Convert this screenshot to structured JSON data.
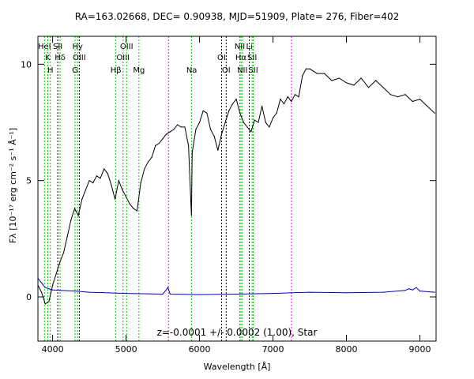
{
  "chart_data": {
    "type": "line",
    "title": "RA=163.02668, DEC= 0.90938, MJD=51909, Plate= 276, Fiber=402",
    "annotation": "z=-0.0001 +/- 0.0002 (1.00), Star",
    "xlabel": "Wavelength [Å]",
    "ylabel": "Fλ [10⁻¹⁷ erg cm⁻² s⁻¹ Å⁻¹]",
    "xlim": [
      3800,
      9220
    ],
    "ylim": [
      -1.9,
      11.2
    ],
    "grid": false,
    "x_ticks": [
      4000,
      5000,
      6000,
      7000,
      8000,
      9000
    ],
    "y_ticks": [
      0,
      5,
      10
    ],
    "series": [
      {
        "color": "#000000",
        "x": [
          3800,
          3850,
          3900,
          3950,
          4000,
          4050,
          4100,
          4150,
          4200,
          4250,
          4300,
          4350,
          4400,
          4450,
          4500,
          4550,
          4600,
          4650,
          4700,
          4750,
          4800,
          4850,
          4900,
          4950,
          5000,
          5050,
          5100,
          5150,
          5200,
          5250,
          5300,
          5350,
          5400,
          5450,
          5500,
          5550,
          5600,
          5650,
          5700,
          5750,
          5800,
          5850,
          5890,
          5900,
          5950,
          6000,
          6050,
          6100,
          6150,
          6200,
          6250,
          6300,
          6350,
          6400,
          6450,
          6500,
          6550,
          6600,
          6650,
          6700,
          6750,
          6800,
          6850,
          6900,
          6950,
          7000,
          7050,
          7100,
          7150,
          7200,
          7250,
          7300,
          7350,
          7400,
          7450,
          7500,
          7600,
          7700,
          7800,
          7900,
          8000,
          8100,
          8200,
          8300,
          8400,
          8500,
          8600,
          8700,
          8800,
          8900,
          9000,
          9100,
          9200
        ],
        "values": [
          0.5,
          0.2,
          -0.3,
          -0.2,
          0.5,
          1.0,
          1.5,
          1.9,
          2.6,
          3.3,
          3.8,
          3.5,
          4.2,
          4.6,
          5.0,
          4.9,
          5.2,
          5.1,
          5.5,
          5.3,
          4.8,
          4.2,
          5.0,
          4.6,
          4.3,
          4.0,
          3.8,
          3.7,
          4.9,
          5.5,
          5.8,
          6.0,
          6.5,
          6.6,
          6.8,
          7.0,
          7.1,
          7.2,
          7.4,
          7.3,
          7.3,
          6.5,
          3.5,
          6.2,
          7.2,
          7.5,
          8.0,
          7.9,
          7.2,
          6.9,
          6.3,
          7.0,
          7.5,
          8.0,
          8.3,
          8.5,
          7.9,
          7.5,
          7.3,
          7.1,
          7.6,
          7.5,
          8.2,
          7.5,
          7.3,
          7.7,
          7.9,
          8.5,
          8.3,
          8.6,
          8.4,
          8.7,
          8.6,
          9.5,
          9.8,
          9.8,
          9.6,
          9.6,
          9.3,
          9.4,
          9.2,
          9.1,
          9.4,
          9.0,
          9.3,
          9.0,
          8.7,
          8.6,
          8.7,
          8.4,
          8.5,
          8.2,
          7.9
        ]
      },
      {
        "color": "#0000cc",
        "x": [
          3800,
          3850,
          3900,
          3950,
          4000,
          4100,
          4300,
          4500,
          5000,
          5500,
          5570,
          5600,
          6000,
          6500,
          7000,
          7500,
          8000,
          8500,
          8800,
          8850,
          8900,
          8950,
          9000,
          9200
        ],
        "values": [
          0.8,
          0.6,
          0.4,
          0.35,
          0.3,
          0.28,
          0.25,
          0.2,
          0.15,
          0.12,
          0.4,
          0.12,
          0.1,
          0.12,
          0.15,
          0.2,
          0.18,
          0.2,
          0.28,
          0.35,
          0.3,
          0.4,
          0.25,
          0.2
        ]
      }
    ],
    "line_markers": [
      {
        "wavelength": 3934,
        "color": "#00cc00",
        "top_label": "K",
        "top_row": 2
      },
      {
        "wavelength": 3969,
        "color": "#00cc00",
        "top_label": "H",
        "top_row": 3
      },
      {
        "wavelength": 3889,
        "color": "#00cc00",
        "top_label": "HeI",
        "top_row": 1
      },
      {
        "wavelength": 4070,
        "color": "#000000",
        "top_label": "SII",
        "top_row": 1
      },
      {
        "wavelength": 4102,
        "color": "#00cc00",
        "top_label": "Hδ",
        "top_row": 2
      },
      {
        "wavelength": 4305,
        "color": "#00cc00",
        "top_label": "G",
        "top_row": 3
      },
      {
        "wavelength": 4340,
        "color": "#00cc00",
        "top_label": "Hγ",
        "top_row": 1
      },
      {
        "wavelength": 4363,
        "color": "#000000",
        "top_label": "OIII",
        "top_row": 2
      },
      {
        "wavelength": 4861,
        "color": "#00cc00",
        "top_label": "Hβ",
        "top_row": 3
      },
      {
        "wavelength": 4959,
        "color": "#00cc00",
        "top_label": "OIII",
        "top_row": 2
      },
      {
        "wavelength": 5007,
        "color": "#00cc00",
        "top_label": "OIII",
        "top_row": 1
      },
      {
        "wavelength": 5175,
        "color": "#00cc00",
        "top_label": "Mg",
        "top_row": 3
      },
      {
        "wavelength": 5577,
        "color": "#ff00ff",
        "top_label": "",
        "top_row": 0
      },
      {
        "wavelength": 5893,
        "color": "#00cc00",
        "top_label": "Na",
        "top_row": 3
      },
      {
        "wavelength": 6300,
        "color": "#000000",
        "top_label": "OI",
        "top_row": 2
      },
      {
        "wavelength": 6363,
        "color": "#000000",
        "top_label": "OI",
        "top_row": 3
      },
      {
        "wavelength": 6548,
        "color": "#00cc00",
        "top_label": "NII",
        "top_row": 1
      },
      {
        "wavelength": 6563,
        "color": "#00cc00",
        "top_label": "Hα",
        "top_row": 2
      },
      {
        "wavelength": 6583,
        "color": "#00cc00",
        "top_label": "NII",
        "top_row": 3
      },
      {
        "wavelength": 6716,
        "color": "#00cc00",
        "top_label": "SII",
        "top_row": 2
      },
      {
        "wavelength": 6731,
        "color": "#00cc00",
        "top_label": "SII",
        "top_row": 3
      },
      {
        "wavelength": 6678,
        "color": "#000000",
        "top_label": "Li",
        "top_row": 1
      },
      {
        "wavelength": 7250,
        "color": "#ff00ff",
        "top_label": "",
        "top_row": 0
      }
    ]
  }
}
